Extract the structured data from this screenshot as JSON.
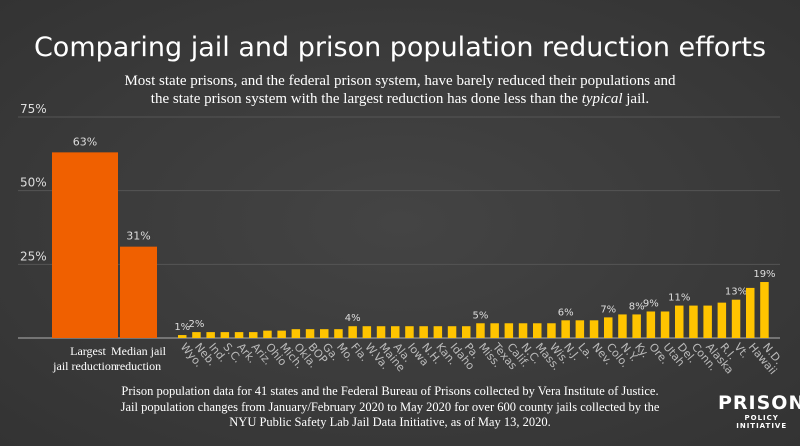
{
  "title": "Comparing jail and prison population reduction efforts",
  "subtitle_line1": "Most state prisons, and the federal prison system, have barely reduced their populations and",
  "subtitle_line2_pre": "the state prison system with the largest reduction has done less than the ",
  "subtitle_line2_em": "typical",
  "subtitle_line2_post": " jail.",
  "footer": [
    "Prison population data for 41 states and the Federal Bureau of Prisons collected by Vera Institute of Justice.",
    "Jail population changes from January/February 2020 to May 2020 for over 600 county jails collected by the",
    "NYU Public Safety Lab Jail Data Initiative, as of May 13, 2020."
  ],
  "logo": {
    "line1": "PRISON",
    "line2": "POLICY INITIATIVE"
  },
  "chart_data": {
    "type": "bar",
    "ylim": [
      0,
      75
    ],
    "yticks": [
      "0%",
      "25%",
      "50%",
      "75%"
    ],
    "ytick_values": [
      0,
      25,
      50,
      75
    ],
    "grid": true,
    "jail_bars": [
      {
        "label": "Largest jail reduction",
        "value": 63,
        "data_label": "63%"
      },
      {
        "label": "Median jail reduction",
        "value": 31,
        "data_label": "31%"
      }
    ],
    "jail_color": "#f06000",
    "prison_color": "#ffc400",
    "categories": [
      "Wyo.",
      "Neb.",
      "Ind.",
      "S.C.",
      "Ark.",
      "Ariz.",
      "Ohio",
      "Mich.",
      "Okla.",
      "BOP",
      "Ga.",
      "Mo.",
      "Fla.",
      "W.Va.",
      "Maine",
      "Ala.",
      "Iowa",
      "N.H.",
      "Kan.",
      "Idaho",
      "Pa.",
      "Miss.",
      "Texas",
      "Calif.",
      "N.C.",
      "Mass.",
      "Wis.",
      "N.J.",
      "La.",
      "Nev.",
      "Colo.",
      "N.Y.",
      "Ky.",
      "Ore.",
      "Utah",
      "Del.",
      "Conn.",
      "Alaska",
      "R.I.",
      "Vt.",
      "Hawaii",
      "N.D."
    ],
    "values": [
      1,
      2,
      2,
      2,
      2,
      2,
      2.5,
      2.5,
      3,
      3,
      3,
      3,
      4,
      4,
      4,
      4,
      4,
      4,
      4,
      4,
      4,
      5,
      5,
      5,
      5,
      5,
      5,
      6,
      6,
      6,
      7,
      8,
      8,
      9,
      9,
      11,
      11,
      11,
      12,
      13,
      17,
      19
    ],
    "data_labels": [
      "1%",
      "2%",
      "",
      "",
      "",
      "",
      "",
      "",
      "",
      "",
      "",
      "",
      "4%",
      "",
      "",
      "",
      "",
      "",
      "",
      "",
      "",
      "5%",
      "",
      "",
      "",
      "",
      "",
      "6%",
      "",
      "",
      "7%",
      "",
      "8%",
      "9%",
      "",
      "11%",
      "",
      "",
      "",
      "13%",
      "",
      "19%"
    ]
  }
}
